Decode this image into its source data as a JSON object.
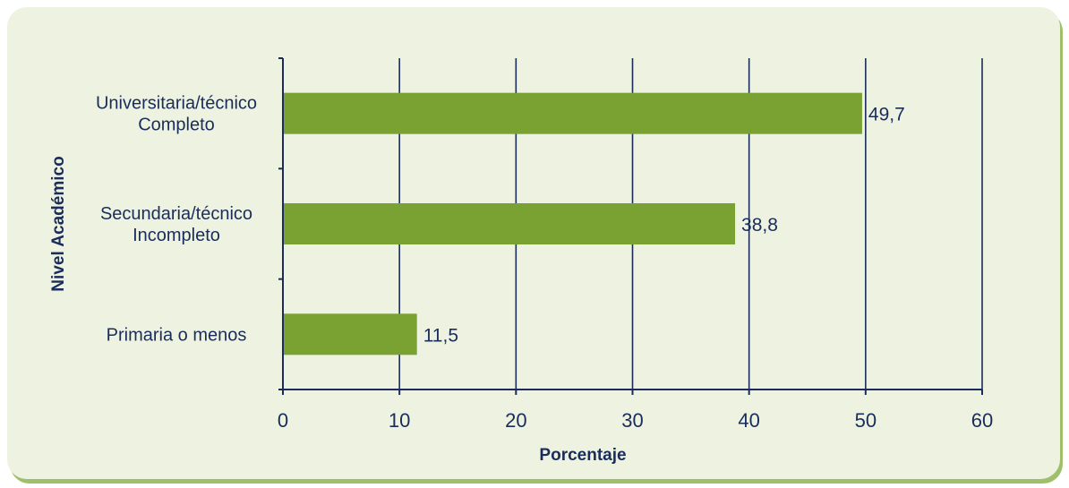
{
  "chart_data": {
    "type": "bar",
    "orientation": "horizontal",
    "categories": [
      [
        "Universitaria/técnico",
        "Completo"
      ],
      [
        "Secundaria/técnico",
        "Incompleto"
      ],
      [
        "Primaria o menos"
      ]
    ],
    "values": [
      49.7,
      38.8,
      11.5
    ],
    "value_labels": [
      "49,7",
      "38,8",
      "11,5"
    ],
    "xlabel": "Porcentaje",
    "ylabel": "Nivel Académico",
    "xlim": [
      0,
      60
    ],
    "xticks": [
      0,
      10,
      20,
      30,
      40,
      50,
      60
    ],
    "grid": "vertical",
    "colors": {
      "bar": "#7aa232",
      "axis": "#1a2d5a",
      "grid": "#1a2d5a",
      "background": "#eef2e1"
    }
  }
}
